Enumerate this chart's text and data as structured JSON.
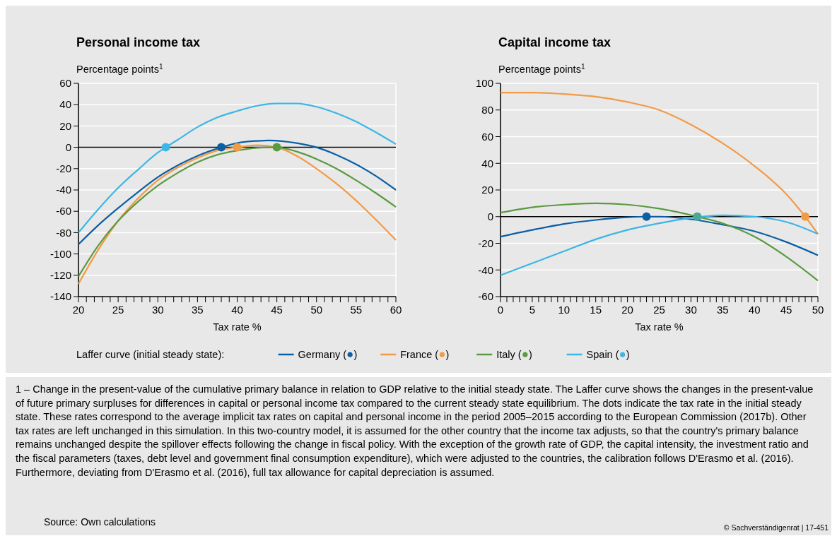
{
  "chart_data": [
    {
      "type": "line",
      "title": "Personal income tax",
      "ylabel": "Percentage points$^{1}$",
      "xlabel": "Tax rate %",
      "legend_title": "Laffer curve (initial steady state):",
      "legend": "bottom",
      "grid": "y",
      "marker": "none",
      "line_style": "solid",
      "xlim": [
        20,
        60
      ],
      "ylim": [
        -140,
        60
      ],
      "xticks": [
        20,
        {
          "value": 21,
          "label": null
        },
        {
          "value": 22,
          "label": null
        },
        {
          "value": 23,
          "label": null
        },
        {
          "value": 24,
          "label": null
        },
        25,
        {
          "value": 26,
          "label": null
        },
        {
          "value": 27,
          "label": null
        },
        {
          "value": 28,
          "label": null
        },
        {
          "value": 29,
          "label": null
        },
        30,
        {
          "value": 31,
          "label": null
        },
        {
          "value": 32,
          "label": null
        },
        {
          "value": 33,
          "label": null
        },
        {
          "value": 34,
          "label": null
        },
        35,
        {
          "value": 36,
          "label": null
        },
        {
          "value": 37,
          "label": null
        },
        {
          "value": 38,
          "label": null
        },
        {
          "value": 39,
          "label": null
        },
        40,
        {
          "value": 41,
          "label": null
        },
        {
          "value": 42,
          "label": null
        },
        {
          "value": 43,
          "label": null
        },
        {
          "value": 44,
          "label": null
        },
        45,
        {
          "value": 46,
          "label": null
        },
        {
          "value": 47,
          "label": null
        },
        {
          "value": 48,
          "label": null
        },
        {
          "value": 49,
          "label": null
        },
        50,
        {
          "value": 51,
          "label": null
        },
        {
          "value": 52,
          "label": null
        },
        {
          "value": 53,
          "label": null
        },
        {
          "value": 54,
          "label": null
        },
        55,
        {
          "value": 56,
          "label": null
        },
        {
          "value": 57,
          "label": null
        },
        {
          "value": 58,
          "label": null
        },
        {
          "value": 59,
          "label": null
        },
        60
      ],
      "yticks": [
        -140,
        -120,
        -100,
        -80,
        -60,
        -40,
        -20,
        0,
        20,
        40,
        60
      ],
      "ref_lines": [
        {
          "axis": "y",
          "value": 0,
          "color": "#000000"
        }
      ],
      "series": [
        {
          "name": "Germany (●)",
          "color": "#0a5fa5",
          "x": [
            20,
            22.5,
            25,
            27.5,
            30,
            32.5,
            35,
            38,
            40,
            42.5,
            44,
            47.5,
            50,
            52.5,
            55,
            57.5,
            60
          ],
          "values": [
            -91,
            -73,
            -57,
            -42,
            -28,
            -17,
            -8,
            0,
            4,
            6,
            6.5,
            4,
            0,
            -7,
            -16,
            -27,
            -40
          ]
        },
        {
          "name": "France (●)",
          "color": "#f39a45",
          "x": [
            20,
            22.5,
            25,
            27.5,
            30,
            32.5,
            35,
            37.5,
            40,
            42.5,
            45,
            47.5,
            50,
            52.5,
            55,
            57.5,
            60
          ],
          "values": [
            -128,
            -96,
            -69,
            -48,
            -31,
            -19,
            -10,
            -3,
            0,
            2,
            0,
            -8,
            -20,
            -34,
            -50,
            -68,
            -87
          ]
        },
        {
          "name": "Italy (●)",
          "color": "#5a9a40",
          "x": [
            20,
            22.5,
            25,
            27.5,
            30,
            32.5,
            35,
            37.5,
            40,
            42.5,
            44,
            45,
            47.5,
            50,
            52.5,
            55,
            57.5,
            60
          ],
          "values": [
            -121,
            -92,
            -69,
            -51,
            -36,
            -24,
            -14,
            -7,
            -3,
            -0.5,
            0,
            0,
            -4,
            -11,
            -20,
            -31,
            -43,
            -56
          ]
        },
        {
          "name": "Spain (●)",
          "color": "#3cb6e6",
          "x": [
            20,
            22.5,
            25,
            27.5,
            30,
            31,
            32.5,
            35,
            37.5,
            40,
            42.5,
            45,
            47.5,
            50,
            52.5,
            55,
            57.5,
            60
          ],
          "values": [
            -80,
            -58,
            -38,
            -21,
            -5,
            0,
            7,
            19,
            28,
            34,
            39,
            41,
            41,
            38,
            32,
            24,
            14,
            3
          ]
        },
        {
          "type": "scatter",
          "marker": "circle",
          "color": "#0a5fa5",
          "x": [
            38
          ],
          "values": [
            0
          ]
        },
        {
          "type": "scatter",
          "marker": "circle",
          "color": "#f39a45",
          "x": [
            40
          ],
          "values": [
            0
          ]
        },
        {
          "type": "scatter",
          "marker": "circle",
          "color": "#5a9a40",
          "x": [
            45
          ],
          "values": [
            0
          ]
        },
        {
          "type": "scatter",
          "marker": "circle",
          "color": "#3cb6e6",
          "x": [
            31
          ],
          "values": [
            0
          ]
        }
      ],
      "annotations": [
        "1 – Change in the present-value of the cumulative primary balance in relation to GDP relative to the initial steady state. The Laffer curve shows the changes in the present-value of future primary surpluses for differences in capital or personal income tax compared to the current steady state equilibrium. The dots indicate the tax rate in the initial steady state. These rates correspond to the average implicit tax rates on capital and personal income in the period 2005–2015 according to the European Commission (2017b). Other tax rates are left unchanged in this simulation. In this two-country model, it is assumed for the other country that the income tax adjusts, so that the country's primary balance remains unchanged despite the spillover effects following the change in fiscal policy. With the exception of the growth rate of GDP, the capital intensity, the investment ratio and the fiscal parameters (taxes, debt level and government final consumption expenditure), which were adjusted to the countries, the calibration follows D'Erasmo et al. (2016). Furthermore, deviating from D'Erasmo et al. (2016), full tax allowance for capital depreciation is assumed.",
        "Source: Own calculations",
        "© Sachverständigenrat | 17-451"
      ]
    },
    {
      "type": "line",
      "title": "Capital income tax",
      "ylabel": "Percentage points$^{1}$",
      "xlabel": "Tax rate %",
      "grid": "y",
      "marker": "none",
      "line_style": "solid",
      "xlim": [
        0,
        50
      ],
      "ylim": [
        -60,
        100
      ],
      "xticks": [
        0,
        {
          "value": 1,
          "label": null
        },
        {
          "value": 2,
          "label": null
        },
        {
          "value": 3,
          "label": null
        },
        {
          "value": 4,
          "label": null
        },
        5,
        {
          "value": 6,
          "label": null
        },
        {
          "value": 7,
          "label": null
        },
        {
          "value": 8,
          "label": null
        },
        {
          "value": 9,
          "label": null
        },
        10,
        {
          "value": 11,
          "label": null
        },
        {
          "value": 12,
          "label": null
        },
        {
          "value": 13,
          "label": null
        },
        {
          "value": 14,
          "label": null
        },
        15,
        {
          "value": 16,
          "label": null
        },
        {
          "value": 17,
          "label": null
        },
        {
          "value": 18,
          "label": null
        },
        {
          "value": 19,
          "label": null
        },
        20,
        {
          "value": 21,
          "label": null
        },
        {
          "value": 22,
          "label": null
        },
        {
          "value": 23,
          "label": null
        },
        {
          "value": 24,
          "label": null
        },
        25,
        {
          "value": 26,
          "label": null
        },
        {
          "value": 27,
          "label": null
        },
        {
          "value": 28,
          "label": null
        },
        {
          "value": 29,
          "label": null
        },
        30,
        {
          "value": 31,
          "label": null
        },
        {
          "value": 32,
          "label": null
        },
        {
          "value": 33,
          "label": null
        },
        {
          "value": 34,
          "label": null
        },
        35,
        {
          "value": 36,
          "label": null
        },
        {
          "value": 37,
          "label": null
        },
        {
          "value": 38,
          "label": null
        },
        {
          "value": 39,
          "label": null
        },
        40,
        {
          "value": 41,
          "label": null
        },
        {
          "value": 42,
          "label": null
        },
        {
          "value": 43,
          "label": null
        },
        {
          "value": 44,
          "label": null
        },
        45,
        {
          "value": 46,
          "label": null
        },
        {
          "value": 47,
          "label": null
        },
        {
          "value": 48,
          "label": null
        },
        {
          "value": 49,
          "label": null
        },
        50
      ],
      "yticks": [
        -60,
        -40,
        -20,
        0,
        20,
        40,
        60,
        80,
        100
      ],
      "ref_lines": [
        {
          "axis": "y",
          "value": 0,
          "color": "#000000"
        }
      ],
      "series": [
        {
          "color": "#0a5fa5",
          "x": [
            0,
            5,
            10,
            15,
            20,
            23,
            25,
            30,
            35,
            40,
            45,
            50
          ],
          "values": [
            -15,
            -10,
            -5.5,
            -2.5,
            -0.5,
            0,
            0,
            -2,
            -6,
            -11,
            -19,
            -29
          ]
        },
        {
          "color": "#f39a45",
          "x": [
            0,
            5,
            10,
            15,
            20,
            25,
            30,
            35,
            40,
            45,
            48,
            50
          ],
          "values": [
            93,
            93,
            92,
            90,
            86,
            80,
            69,
            55,
            38,
            17,
            0,
            -13
          ]
        },
        {
          "color": "#5a9a40",
          "x": [
            0,
            5,
            10,
            15,
            20,
            25,
            31,
            35,
            40,
            45,
            50
          ],
          "values": [
            3,
            7,
            9,
            10,
            9,
            6,
            0,
            -5,
            -15,
            -30,
            -48
          ]
        },
        {
          "color": "#3cb6e6",
          "x": [
            0,
            5,
            10,
            15,
            20,
            25,
            30,
            35,
            40,
            45,
            50
          ],
          "values": [
            -44,
            -35,
            -26,
            -17,
            -10,
            -5,
            -1,
            1,
            0,
            -4,
            -13
          ]
        },
        {
          "type": "scatter",
          "marker": "circle",
          "color": "#0a5fa5",
          "x": [
            23
          ],
          "values": [
            0
          ]
        },
        {
          "type": "scatter",
          "marker": "circle",
          "color": "#f39a45",
          "x": [
            48
          ],
          "values": [
            0
          ]
        },
        {
          "type": "scatter",
          "marker": "circle",
          "color": "#5a9a40",
          "x": [
            31
          ],
          "values": [
            0
          ]
        },
        {
          "type": "scatter",
          "marker": "circle",
          "color": "#3cb6e6",
          "x": [
            31
          ],
          "values": [
            0
          ]
        }
      ]
    }
  ]
}
